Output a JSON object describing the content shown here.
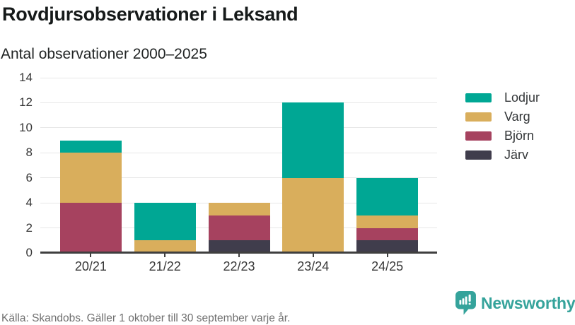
{
  "chart_data": {
    "type": "bar",
    "stacked": true,
    "title": "Rovdjursobservationer i Leksand",
    "subtitle": "Antal observationer 2000–2025",
    "categories": [
      "20/21",
      "21/22",
      "22/23",
      "23/24",
      "24/25"
    ],
    "series": [
      {
        "name": "Lodjur",
        "color": "#00A794",
        "values": [
          1,
          3,
          0,
          6,
          3
        ]
      },
      {
        "name": "Varg",
        "color": "#D9AE5C",
        "values": [
          4,
          1,
          1,
          6,
          1
        ]
      },
      {
        "name": "Björn",
        "color": "#A6425F",
        "values": [
          4,
          0,
          2,
          0,
          1
        ]
      },
      {
        "name": "Järv",
        "color": "#403D4C",
        "values": [
          0,
          0,
          1,
          0,
          1
        ]
      }
    ],
    "stack_order_bottom_to_top": [
      "Järv",
      "Björn",
      "Varg",
      "Lodjur"
    ],
    "xlabel": "",
    "ylabel": "",
    "ylim": [
      0,
      14
    ],
    "yticks": [
      0,
      2,
      4,
      6,
      8,
      10,
      12,
      14
    ],
    "grid": true,
    "legend_position": "right"
  },
  "footer": {
    "source": "Källa: Skandobs. Gäller 1 oktober till 30 september varje år."
  },
  "brand": {
    "name": "Newsworthy",
    "color": "#35A39B"
  },
  "colors": {
    "background": "#FFFFFF",
    "text": "#161A1A",
    "tick_label": "#373737",
    "axis": "#3F3F3F",
    "grid": "#E7E7E7",
    "source": "#6F6F6F"
  }
}
